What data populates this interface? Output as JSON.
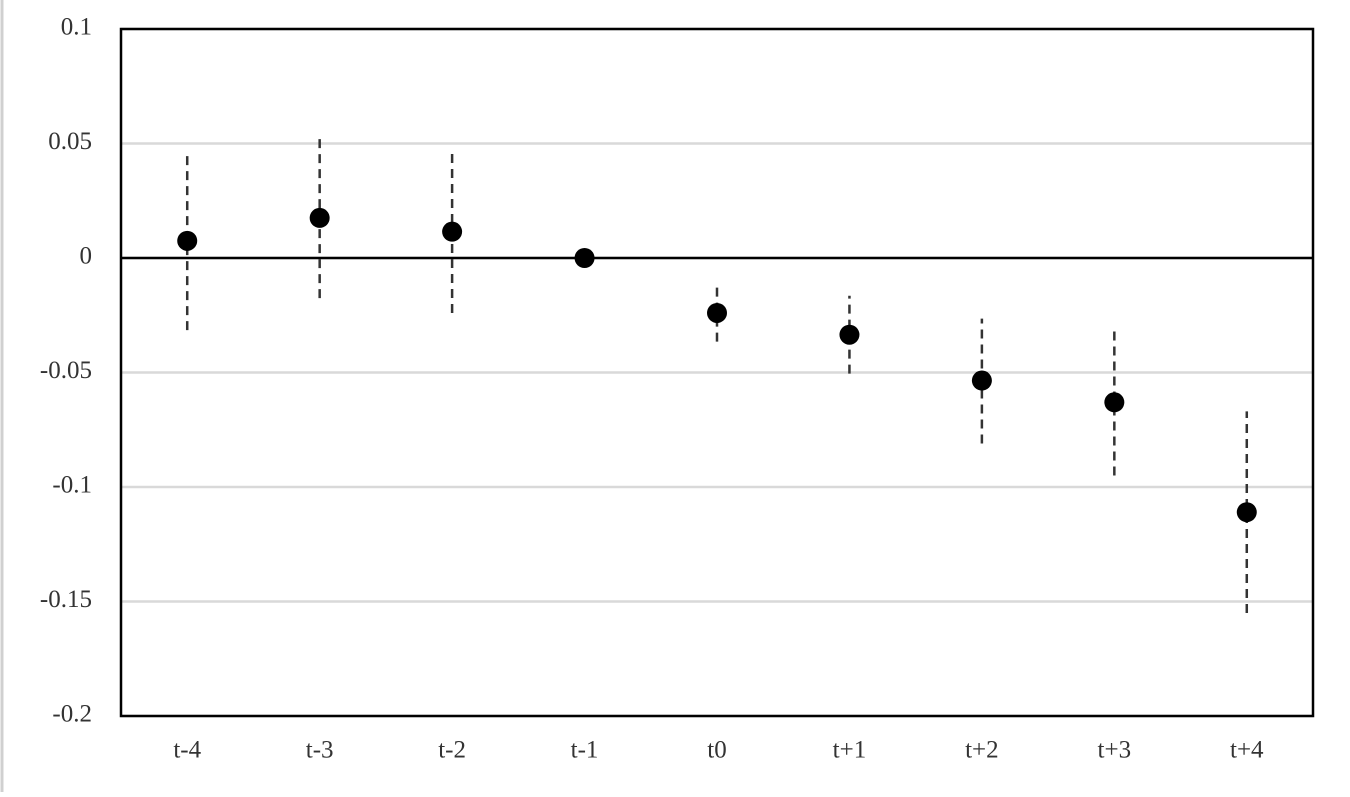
{
  "chart_data": {
    "type": "errorbar",
    "categories": [
      "t-4",
      "t-3",
      "t-2",
      "t-1",
      "t0",
      "t+1",
      "t+2",
      "t+3",
      "t+4"
    ],
    "values": [
      0.0075,
      0.0175,
      0.0115,
      0,
      -0.024,
      -0.0335,
      -0.0535,
      -0.063,
      -0.111
    ],
    "lower": [
      -0.0315,
      -0.0175,
      -0.024,
      null,
      -0.0365,
      -0.0505,
      -0.081,
      -0.095,
      -0.155
    ],
    "upper": [
      0.046,
      0.0535,
      0.047,
      null,
      -0.0115,
      -0.0165,
      -0.0265,
      -0.032,
      -0.067
    ],
    "color": "#000000",
    "ylim": [
      -0.2,
      0.1
    ],
    "yticks": [
      -0.2,
      -0.15,
      -0.1,
      -0.05,
      0,
      0.05,
      0.1
    ],
    "grid": true
  }
}
